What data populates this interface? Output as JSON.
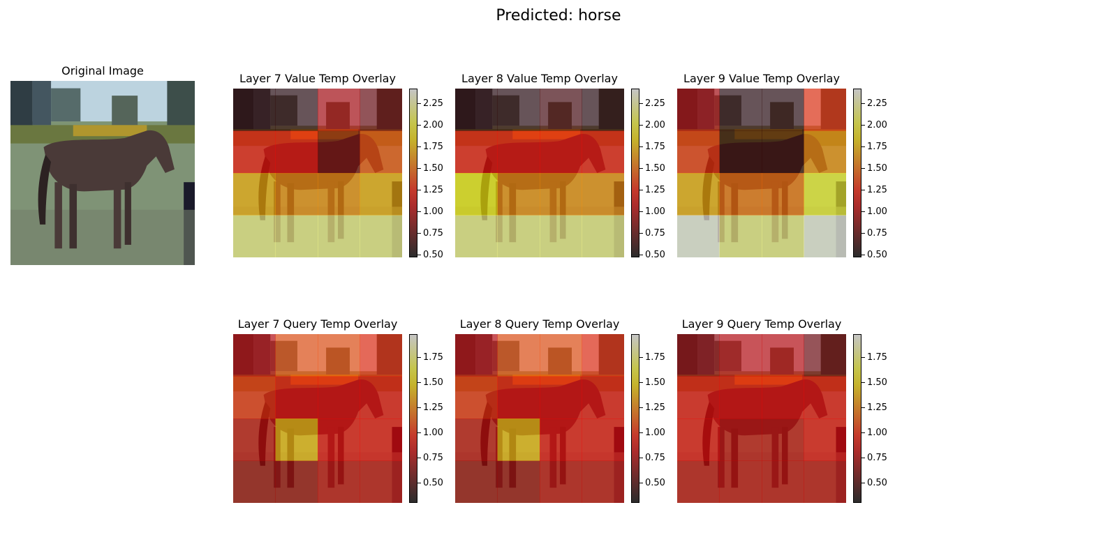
{
  "suptitle": "Predicted: horse",
  "original": {
    "title": "Original Image"
  },
  "panels": [
    {
      "title": "Layer 7 Value Temp Overlay",
      "row": 0,
      "col": 0
    },
    {
      "title": "Layer 8 Value Temp Overlay",
      "row": 0,
      "col": 1
    },
    {
      "title": "Layer 9 Value Temp Overlay",
      "row": 0,
      "col": 2
    },
    {
      "title": "Layer 7 Query Temp Overlay",
      "row": 1,
      "col": 0
    },
    {
      "title": "Layer 8 Query Temp Overlay",
      "row": 1,
      "col": 1
    },
    {
      "title": "Layer 9 Query Temp Overlay",
      "row": 1,
      "col": 2
    }
  ],
  "colorbars": {
    "value": {
      "range": [
        0.47,
        2.42
      ],
      "ticks": [
        "2.25",
        "2.00",
        "1.75",
        "1.50",
        "1.25",
        "1.00",
        "0.75",
        "0.50"
      ]
    },
    "query": {
      "range": [
        0.3,
        1.98
      ],
      "ticks": [
        "1.75",
        "1.50",
        "1.25",
        "1.00",
        "0.75",
        "0.50"
      ]
    }
  },
  "colormap": "hot",
  "chart_data": {
    "type": "heatmap",
    "title": "Predicted: horse",
    "grid": "4x4 patches overlaid on 32x32 image",
    "maps": [
      {
        "name": "Layer 7 Value Temp Overlay",
        "values": [
          [
            0.6,
            0.6,
            1.0,
            0.8
          ],
          [
            1.2,
            1.2,
            0.8,
            1.4
          ],
          [
            1.7,
            1.6,
            1.6,
            1.7
          ],
          [
            2.2,
            2.2,
            2.2,
            2.2
          ]
        ]
      },
      {
        "name": "Layer 8 Value Temp Overlay",
        "values": [
          [
            0.6,
            0.6,
            0.7,
            0.6
          ],
          [
            1.2,
            1.2,
            1.2,
            1.2
          ],
          [
            1.9,
            1.6,
            1.6,
            1.6
          ],
          [
            2.2,
            2.2,
            2.2,
            2.2
          ]
        ]
      },
      {
        "name": "Layer 9 Value Temp Overlay",
        "values": [
          [
            1.0,
            0.6,
            0.6,
            1.3
          ],
          [
            1.3,
            0.6,
            0.6,
            1.6
          ],
          [
            1.7,
            1.5,
            1.5,
            2.0
          ],
          [
            2.4,
            2.2,
            2.2,
            2.4
          ]
        ]
      },
      {
        "name": "Layer 7 Query Temp Overlay",
        "values": [
          [
            0.8,
            1.1,
            1.1,
            1.0
          ],
          [
            1.0,
            0.9,
            0.9,
            0.9
          ],
          [
            0.8,
            1.4,
            0.9,
            0.9
          ],
          [
            0.7,
            0.7,
            0.8,
            0.8
          ]
        ]
      },
      {
        "name": "Layer 8 Query Temp Overlay",
        "values": [
          [
            0.8,
            1.1,
            1.1,
            1.0
          ],
          [
            1.0,
            0.9,
            0.9,
            0.9
          ],
          [
            0.8,
            1.4,
            0.9,
            0.9
          ],
          [
            0.7,
            0.7,
            0.8,
            0.8
          ]
        ]
      },
      {
        "name": "Layer 9 Query Temp Overlay",
        "values": [
          [
            0.7,
            0.8,
            0.8,
            0.6
          ],
          [
            0.9,
            0.9,
            0.9,
            0.9
          ],
          [
            0.9,
            0.8,
            0.8,
            0.9
          ],
          [
            0.8,
            0.8,
            0.8,
            0.8
          ]
        ]
      }
    ]
  }
}
